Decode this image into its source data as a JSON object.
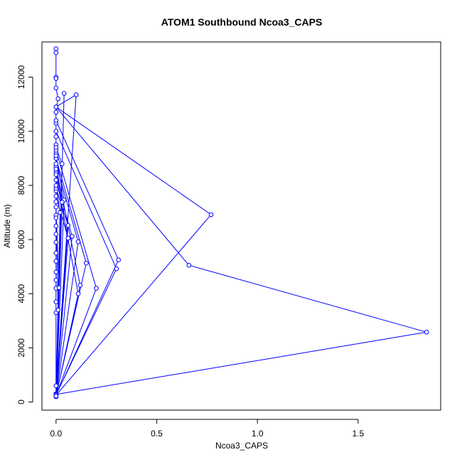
{
  "chart_data": {
    "type": "line",
    "title": "ATOM1 Southbound Ncoa3_CAPS",
    "xlabel": "Ncoa3_CAPS",
    "ylabel": "Altitude (m)",
    "xlim": [
      -0.07,
      1.91
    ],
    "ylim": [
      -300,
      13300
    ],
    "xticks": [
      0.0,
      0.5,
      1.0,
      1.5
    ],
    "xtick_labels": [
      "0.0",
      "0.5",
      "1.0",
      "1.5"
    ],
    "yticks": [
      0,
      2000,
      4000,
      6000,
      8000,
      10000,
      12000
    ],
    "ytick_labels": [
      "0",
      "2000",
      "4000",
      "6000",
      "8000",
      "10000",
      "12000"
    ],
    "grid": false,
    "legend": "none",
    "colors": {
      "series": "#0000ff",
      "axes": "#000000",
      "background": "#ffffff"
    },
    "marker": "open-circle",
    "series": [
      {
        "points": [
          [
            0.0,
            13050
          ],
          [
            0.0,
            12900
          ],
          [
            0.0,
            12000
          ],
          [
            0.0,
            11950
          ],
          [
            0.0,
            11600
          ],
          [
            0.01,
            11200
          ],
          [
            0.0,
            10700
          ],
          [
            0.0,
            10300
          ],
          [
            0.0,
            9800
          ],
          [
            0.0,
            9500
          ],
          [
            0.0,
            9200
          ],
          [
            0.0,
            8500
          ],
          [
            0.0,
            7800
          ],
          [
            0.0,
            7400
          ],
          [
            0.0,
            6900
          ],
          [
            0.0,
            6500
          ],
          [
            0.0,
            6200
          ],
          [
            0.0,
            5900
          ],
          [
            0.0,
            5500
          ],
          [
            0.0,
            5200
          ],
          [
            0.0,
            4800
          ],
          [
            0.0,
            4500
          ],
          [
            0.0,
            4200
          ],
          [
            0.0,
            3700
          ],
          [
            0.0,
            3300
          ],
          [
            0.0,
            600
          ],
          [
            0.0,
            300
          ],
          [
            0.04,
            11400
          ],
          [
            0.0,
            300
          ],
          [
            0.1,
            11350
          ],
          [
            0.0,
            10900
          ],
          [
            0.77,
            6920
          ],
          [
            0.0,
            250
          ],
          [
            0.0,
            10900
          ],
          [
            0.66,
            5050
          ],
          [
            1.84,
            2580
          ],
          [
            0.0,
            280
          ],
          [
            0.0,
            10400
          ],
          [
            0.31,
            5250
          ],
          [
            0.0,
            250
          ],
          [
            0.0,
            10000
          ],
          [
            0.3,
            4920
          ],
          [
            0.0,
            260
          ],
          [
            0.0,
            9300
          ],
          [
            0.2,
            4200
          ],
          [
            0.0,
            240
          ],
          [
            0.0,
            9000
          ],
          [
            0.15,
            5130
          ],
          [
            0.0,
            230
          ],
          [
            0.0,
            8700
          ],
          [
            0.12,
            4310
          ],
          [
            0.0,
            220
          ],
          [
            0.0,
            8400
          ],
          [
            0.11,
            4000
          ],
          [
            0.0,
            210
          ],
          [
            0.0,
            8800
          ],
          [
            0.11,
            5920
          ],
          [
            0.0,
            200
          ],
          [
            0.0,
            8200
          ],
          [
            0.08,
            6120
          ],
          [
            0.0,
            210
          ],
          [
            0.0,
            7900
          ],
          [
            0.06,
            6520
          ],
          [
            0.0,
            220
          ],
          [
            0.0,
            7600
          ],
          [
            0.06,
            6050
          ],
          [
            0.0,
            230
          ],
          [
            0.0,
            9100
          ],
          [
            0.04,
            7460
          ],
          [
            0.0,
            200
          ],
          [
            0.0,
            8600
          ],
          [
            0.03,
            7380
          ],
          [
            0.0,
            250
          ],
          [
            0.0,
            9400
          ],
          [
            0.03,
            8800
          ],
          [
            0.0,
            260
          ],
          [
            0.0,
            8000
          ],
          [
            0.02,
            7000
          ],
          [
            0.0,
            200
          ],
          [
            0.0,
            7200
          ],
          [
            0.015,
            4220
          ],
          [
            0.0,
            210
          ],
          [
            0.0,
            6800
          ],
          [
            0.01,
            3400
          ],
          [
            0.0,
            220
          ]
        ]
      }
    ]
  }
}
